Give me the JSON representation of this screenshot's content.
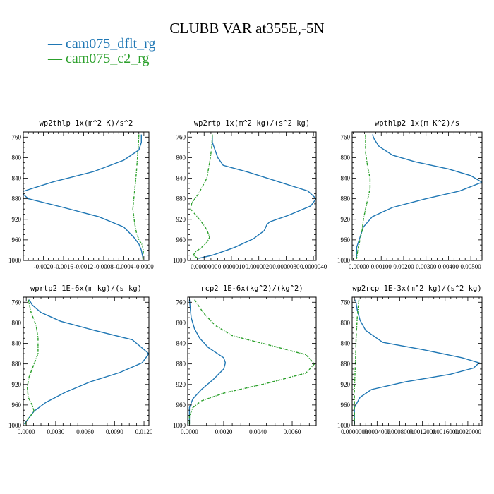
{
  "title": "CLUBB VAR at355E,-5N",
  "legend": [
    {
      "label": "cam075_dflt_rg",
      "color": "#1f77b4",
      "dash": "solid"
    },
    {
      "label": "cam075_c2_rg",
      "color": "#2ca02c",
      "dash": "dashdot"
    }
  ],
  "chart_data": [
    {
      "type": "line",
      "title": "wp2thlp  1x(m^2 K)/s^2",
      "xlim": [
        -0.0024,
        0.0001
      ],
      "ylim": [
        1000,
        750
      ],
      "yticks": [
        760,
        800,
        840,
        880,
        920,
        960,
        1000
      ],
      "xticks": [
        -0.002,
        -0.0016,
        -0.0012,
        -0.0008,
        -0.0004,
        0.0
      ],
      "xtick_labels": [
        "-0.0020",
        "-0.0016",
        "-0.0012",
        "-0.0008",
        "-0.0004",
        "-0.0000"
      ],
      "series": [
        {
          "name": "cam075_dflt_rg",
          "x": [
            -5e-05,
            -5e-05,
            -0.0001,
            -0.0004,
            -0.001,
            -0.0018,
            -0.00245,
            -0.0023,
            -0.0016,
            -0.0009,
            -0.0004,
            -0.0002,
            -0.0001,
            -5e-05,
            -2e-05
          ],
          "y": [
            755,
            770,
            785,
            805,
            827,
            847,
            867,
            880,
            897,
            915,
            935,
            955,
            968,
            980,
            995
          ]
        },
        {
          "name": "cam075_c2_rg",
          "x": [
            -0.0001,
            -0.00012,
            -0.00015,
            -0.00018,
            -0.0002,
            -0.00022,
            -0.0002,
            -0.00018,
            -0.00015,
            -0.0001,
            -3e-05,
            -1e-05,
            -2e-05,
            -2e-05
          ],
          "y": [
            755,
            790,
            830,
            860,
            880,
            900,
            915,
            930,
            945,
            960,
            970,
            982,
            992,
            998
          ]
        }
      ]
    },
    {
      "type": "line",
      "title": "wp2rtp  1x(m^2 kg)/(s^2 kg)",
      "xlim": [
        -6e-07,
        4.1e-06
      ],
      "ylim": [
        1000,
        750
      ],
      "yticks": [
        760,
        800,
        840,
        880,
        920,
        960,
        1000
      ],
      "xticks": [
        0.0,
        1e-06,
        2e-06,
        3e-06,
        4e-06
      ],
      "xtick_labels": [
        "0.0000000",
        "0.0000010",
        "0.0000020",
        "0.0000030",
        "0.0000040"
      ],
      "series": [
        {
          "name": "cam075_dflt_rg",
          "x": [
            3e-07,
            3e-07,
            4e-07,
            5e-07,
            7e-07,
            1.6e-06,
            3.8e-06,
            4.1e-06,
            3.9e-06,
            3.1e-06,
            2.4e-06,
            2.3e-06,
            2.2e-06,
            1.8e-06,
            1.1e-06,
            3e-07,
            -2e-07
          ],
          "y": [
            758,
            770,
            785,
            800,
            815,
            828,
            865,
            880,
            894,
            912,
            925,
            930,
            942,
            958,
            975,
            990,
            996
          ]
        },
        {
          "name": "cam075_c2_rg",
          "x": [
            3e-07,
            2.8e-07,
            2e-07,
            1e-07,
            -2e-07,
            -4.5e-07,
            -5e-07,
            -3e-07,
            -1e-07,
            1e-07,
            2e-07,
            1e-07,
            -1e-07,
            -3e-07,
            -4e-07,
            -2e-07
          ],
          "y": [
            755,
            780,
            810,
            840,
            870,
            888,
            900,
            912,
            925,
            940,
            955,
            965,
            975,
            983,
            990,
            997
          ]
        }
      ]
    },
    {
      "type": "line",
      "title": "wpthlp2  1x(m K^2)/s",
      "xlim": [
        -0.0003,
        0.0055
      ],
      "ylim": [
        1000,
        750
      ],
      "yticks": [
        760,
        800,
        840,
        880,
        920,
        960,
        1000
      ],
      "xticks": [
        0.0,
        0.001,
        0.002,
        0.003,
        0.004,
        0.005
      ],
      "xtick_labels": [
        "0.00000",
        "0.00100",
        "0.00200",
        "0.00300",
        "0.00400",
        "0.00500"
      ],
      "series": [
        {
          "name": "cam075_dflt_rg",
          "x": [
            0.0006,
            0.0007,
            0.0009,
            0.0015,
            0.0025,
            0.004,
            0.005,
            0.0055,
            0.0045,
            0.003,
            0.0015,
            0.0006,
            0.0002,
            5e-05,
            -0.0001,
            -0.0001
          ],
          "y": [
            755,
            765,
            778,
            795,
            808,
            822,
            835,
            848,
            865,
            880,
            897,
            915,
            935,
            955,
            975,
            995
          ]
        },
        {
          "name": "cam075_c2_rg",
          "x": [
            0.0003,
            0.0003,
            0.0004,
            0.0005,
            0.0005,
            0.0004,
            0.0003,
            0.0002,
            0.00015,
            5e-05,
            -5e-05,
            -0.0001
          ],
          "y": [
            755,
            790,
            820,
            840,
            860,
            880,
            900,
            920,
            940,
            960,
            980,
            997
          ]
        }
      ]
    },
    {
      "type": "line",
      "title": "wprtp2  1E-6x(m kg)/(s kg)",
      "xlim": [
        -0.0003,
        0.0125
      ],
      "ylim": [
        1000,
        750
      ],
      "yticks": [
        760,
        800,
        840,
        880,
        920,
        960,
        1000
      ],
      "xticks": [
        0.0,
        0.003,
        0.006,
        0.009,
        0.012
      ],
      "xtick_labels": [
        "0.0000",
        "0.0030",
        "0.0060",
        "0.0090",
        "0.0120"
      ],
      "series": [
        {
          "name": "cam075_dflt_rg",
          "x": [
            0.0003,
            0.0006,
            0.0015,
            0.0035,
            0.007,
            0.0108,
            0.0125,
            0.0118,
            0.0095,
            0.0065,
            0.004,
            0.002,
            0.0008,
            0.0002,
            -0.0002
          ],
          "y": [
            755,
            765,
            780,
            797,
            815,
            833,
            860,
            878,
            897,
            915,
            935,
            955,
            972,
            987,
            997
          ]
        },
        {
          "name": "cam075_c2_rg",
          "x": [
            0.0002,
            0.0005,
            0.001,
            0.0012,
            0.0012,
            0.0008,
            0.0003,
            0.0001,
            0.0002,
            0.0006,
            0.0008,
            0.0004,
            0.0,
            -0.0001
          ],
          "y": [
            755,
            780,
            805,
            830,
            860,
            880,
            905,
            925,
            945,
            960,
            972,
            982,
            992,
            998
          ]
        }
      ]
    },
    {
      "type": "line",
      "title": "rcp2  1E-6x(kg^2)/(kg^2)",
      "xlim": [
        -0.0001,
        0.0074
      ],
      "ylim": [
        1000,
        750
      ],
      "yticks": [
        760,
        800,
        840,
        880,
        920,
        960,
        1000
      ],
      "xticks": [
        0.0,
        0.002,
        0.004,
        0.006
      ],
      "xtick_labels": [
        "0.0000",
        "0.0020",
        "0.0040",
        "0.0060"
      ],
      "series": [
        {
          "name": "cam075_dflt_rg",
          "x": [
            0.0,
            0.0001,
            0.0003,
            0.0006,
            0.0011,
            0.002,
            0.0021,
            0.002,
            0.0014,
            0.0007,
            0.0002,
            0.0,
            0.0,
            0.0
          ],
          "y": [
            755,
            790,
            812,
            830,
            848,
            868,
            878,
            890,
            910,
            930,
            948,
            965,
            985,
            998
          ]
        },
        {
          "name": "cam075_c2_rg",
          "x": [
            0.0003,
            0.0008,
            0.0015,
            0.0025,
            0.0045,
            0.0068,
            0.0073,
            0.0068,
            0.0045,
            0.002,
            0.0007,
            0.0002,
            0.0,
            0.0
          ],
          "y": [
            755,
            780,
            805,
            825,
            842,
            862,
            880,
            898,
            918,
            937,
            952,
            965,
            982,
            998
          ]
        }
      ]
    },
    {
      "type": "line",
      "title": "wp2rcp  1E-3x(m^2 kg)/(s^2 kg)",
      "xlim": [
        -4e-05,
        0.00225
      ],
      "ylim": [
        1000,
        750
      ],
      "yticks": [
        760,
        800,
        840,
        880,
        920,
        960,
        1000
      ],
      "xticks": [
        0.0,
        0.0004,
        0.0008,
        0.0012,
        0.0016,
        0.002
      ],
      "xtick_labels": [
        "0.0000000",
        "0.0004000",
        "0.0008000",
        "0.0012000",
        "0.0016000",
        "0.0020000"
      ],
      "series": [
        {
          "name": "cam075_dflt_rg",
          "x": [
            2e-05,
            5e-05,
            0.0001,
            0.0002,
            0.0005,
            0.0012,
            0.0019,
            0.0022,
            0.0021,
            0.0017,
            0.0009,
            0.0003,
            0.0001,
            0.0,
            0.0
          ],
          "y": [
            755,
            775,
            795,
            815,
            838,
            852,
            868,
            878,
            888,
            900,
            915,
            930,
            945,
            965,
            998
          ]
        },
        {
          "name": "cam075_c2_rg",
          "x": [
            8e-05,
            5e-05,
            3e-05,
            2e-05,
            1e-05,
            0.0,
            0.0,
            0.0
          ],
          "y": [
            755,
            790,
            830,
            870,
            900,
            930,
            960,
            998
          ]
        }
      ]
    }
  ]
}
